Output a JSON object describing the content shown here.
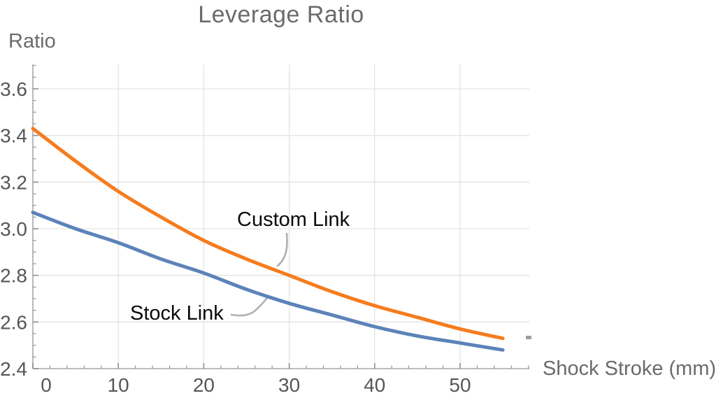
{
  "title": "Leverage Ratio",
  "axes": {
    "y_label": "Ratio",
    "x_label": "Shock Stroke (mm)"
  },
  "callouts": {
    "custom_label": "Custom Link",
    "stock_label": "Stock Link"
  },
  "colors": {
    "custom_line": "#f57c1e",
    "stock_line": "#5c83b9",
    "grid": "#e3e3e3",
    "axis_line": "#a9a9a9",
    "tick": "#8a8a8a",
    "tick_label": "#565656",
    "heading": "#6b6b6b",
    "leader_line": "#b1b1b1",
    "callout_text": "#0a0a0a",
    "artifact": "#9e9e9e"
  },
  "chart_data": {
    "type": "line",
    "title": "Leverage Ratio",
    "xlabel": "Shock Stroke (mm)",
    "ylabel": "Ratio",
    "x": [
      0,
      5,
      10,
      15,
      20,
      25,
      30,
      35,
      40,
      45,
      50,
      55
    ],
    "series": [
      {
        "name": "Custom Link",
        "color": "#f57c1e",
        "values": [
          3.43,
          3.29,
          3.16,
          3.05,
          2.95,
          2.87,
          2.8,
          2.73,
          2.67,
          2.62,
          2.57,
          2.53
        ]
      },
      {
        "name": "Stock Link",
        "color": "#5c83b9",
        "values": [
          3.07,
          3.0,
          2.94,
          2.87,
          2.81,
          2.74,
          2.68,
          2.63,
          2.58,
          2.54,
          2.51,
          2.48
        ]
      }
    ],
    "xlim": [
      0,
      58.1
    ],
    "ylim": [
      2.4,
      3.705
    ],
    "x_major_ticks": [
      0,
      10,
      20,
      30,
      40,
      50
    ],
    "x_minor_step": 2,
    "y_major_ticks": [
      2.4,
      2.6,
      2.8,
      3.0,
      3.2,
      3.4,
      3.6
    ],
    "y_minor_step": 0.05,
    "grid": true,
    "legend_position": "inline-callouts"
  }
}
